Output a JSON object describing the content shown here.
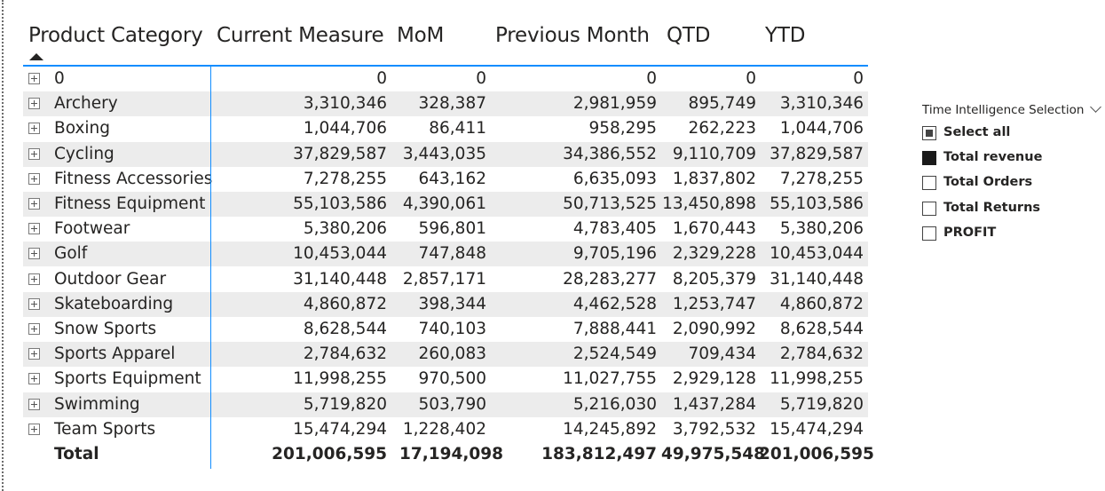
{
  "matrix": {
    "headers": [
      "Product Category",
      "Current Measure",
      "MoM",
      "Previous Month",
      "QTD",
      "YTD"
    ],
    "rows": [
      {
        "name": "0",
        "values": [
          "0",
          "0",
          "0",
          "0",
          "0"
        ]
      },
      {
        "name": "Archery",
        "values": [
          "3,310,346",
          "328,387",
          "2,981,959",
          "895,749",
          "3,310,346"
        ]
      },
      {
        "name": "Boxing",
        "values": [
          "1,044,706",
          "86,411",
          "958,295",
          "262,223",
          "1,044,706"
        ]
      },
      {
        "name": "Cycling",
        "values": [
          "37,829,587",
          "3,443,035",
          "34,386,552",
          "9,110,709",
          "37,829,587"
        ]
      },
      {
        "name": "Fitness Accessories",
        "values": [
          "7,278,255",
          "643,162",
          "6,635,093",
          "1,837,802",
          "7,278,255"
        ]
      },
      {
        "name": "Fitness Equipment",
        "values": [
          "55,103,586",
          "4,390,061",
          "50,713,525",
          "13,450,898",
          "55,103,586"
        ]
      },
      {
        "name": "Footwear",
        "values": [
          "5,380,206",
          "596,801",
          "4,783,405",
          "1,670,443",
          "5,380,206"
        ]
      },
      {
        "name": "Golf",
        "values": [
          "10,453,044",
          "747,848",
          "9,705,196",
          "2,329,228",
          "10,453,044"
        ]
      },
      {
        "name": "Outdoor Gear",
        "values": [
          "31,140,448",
          "2,857,171",
          "28,283,277",
          "8,205,379",
          "31,140,448"
        ]
      },
      {
        "name": "Skateboarding",
        "values": [
          "4,860,872",
          "398,344",
          "4,462,528",
          "1,253,747",
          "4,860,872"
        ]
      },
      {
        "name": "Snow Sports",
        "values": [
          "8,628,544",
          "740,103",
          "7,888,441",
          "2,090,992",
          "8,628,544"
        ]
      },
      {
        "name": "Sports Apparel",
        "values": [
          "2,784,632",
          "260,083",
          "2,524,549",
          "709,434",
          "2,784,632"
        ]
      },
      {
        "name": "Sports Equipment",
        "values": [
          "11,998,255",
          "970,500",
          "11,027,755",
          "2,929,128",
          "11,998,255"
        ]
      },
      {
        "name": "Swimming",
        "values": [
          "5,719,820",
          "503,790",
          "5,216,030",
          "1,437,284",
          "5,719,820"
        ]
      },
      {
        "name": "Team Sports",
        "values": [
          "15,474,294",
          "1,228,402",
          "14,245,892",
          "3,792,532",
          "15,474,294"
        ]
      }
    ],
    "total": {
      "name": "Total",
      "values": [
        "201,006,595",
        "17,194,098",
        "183,812,497",
        "49,975,548",
        "201,006,595"
      ]
    },
    "sort_icon": "sort-ascending-icon",
    "expand_icon": "plus-box-icon",
    "accent_color": "#118dff",
    "row_shade_color": "#ececec"
  },
  "slicer": {
    "title": "Time Intelligence Selection",
    "collapse_icon": "chevron-down-icon",
    "options": [
      {
        "label": "Select all",
        "state": "partial"
      },
      {
        "label": "Total revenue",
        "state": "checked"
      },
      {
        "label": "Total Orders",
        "state": "unchecked"
      },
      {
        "label": "Total Returns",
        "state": "unchecked"
      },
      {
        "label": "PROFIT",
        "state": "unchecked"
      }
    ]
  }
}
